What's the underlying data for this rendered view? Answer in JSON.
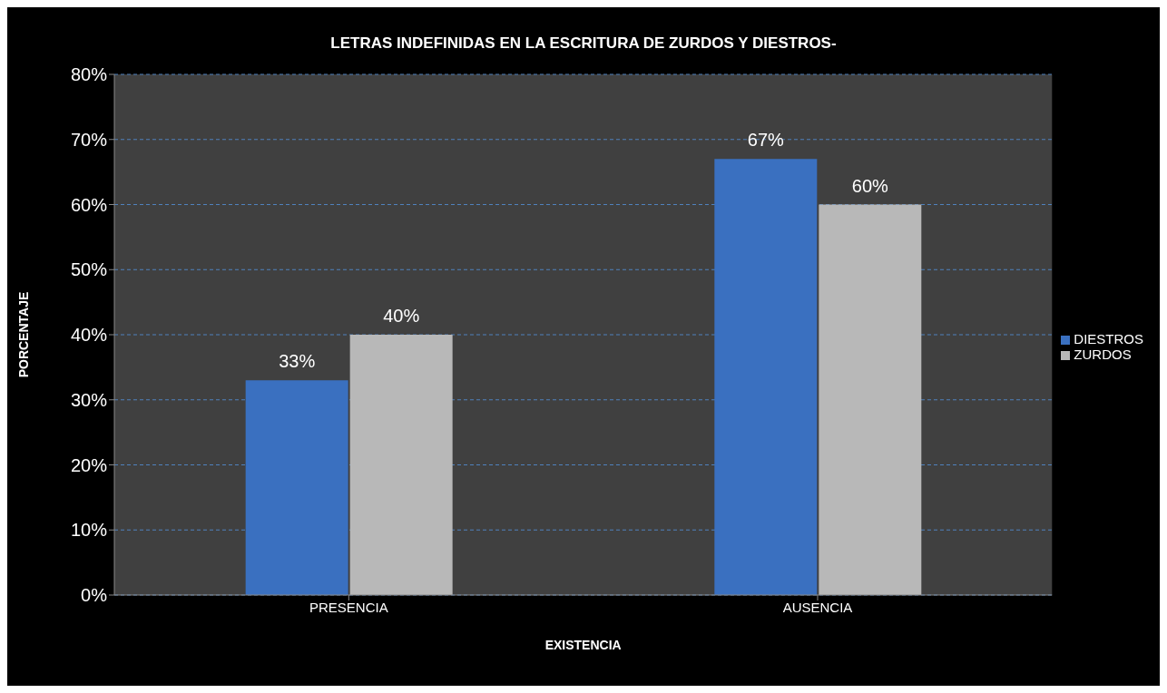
{
  "chart_data": {
    "type": "bar",
    "title": "LETRAS INDEFINIDAS EN LA ESCRITURA DE ZURDOS Y DIESTROS-",
    "xlabel": "EXISTENCIA",
    "ylabel": "PORCENTAJE",
    "categories": [
      "PRESENCIA",
      "AUSENCIA"
    ],
    "series": [
      {
        "name": "DIESTROS",
        "color": "#3a70c0",
        "values": [
          33,
          67
        ],
        "value_labels": [
          "33%",
          "67%"
        ]
      },
      {
        "name": "ZURDOS",
        "color": "#b8b8b8",
        "values": [
          40,
          60
        ],
        "value_labels": [
          "40%",
          "60%"
        ]
      }
    ],
    "ylim": [
      0,
      80
    ],
    "yticks": [
      {
        "value": 0,
        "label": "0%"
      },
      {
        "value": 10,
        "label": "10%"
      },
      {
        "value": 20,
        "label": "20%"
      },
      {
        "value": 30,
        "label": "30%"
      },
      {
        "value": 40,
        "label": "40%"
      },
      {
        "value": 50,
        "label": "50%"
      },
      {
        "value": 60,
        "label": "60%"
      },
      {
        "value": 70,
        "label": "70%"
      },
      {
        "value": 80,
        "label": "80%"
      }
    ],
    "grid": "y",
    "legend": "right"
  }
}
